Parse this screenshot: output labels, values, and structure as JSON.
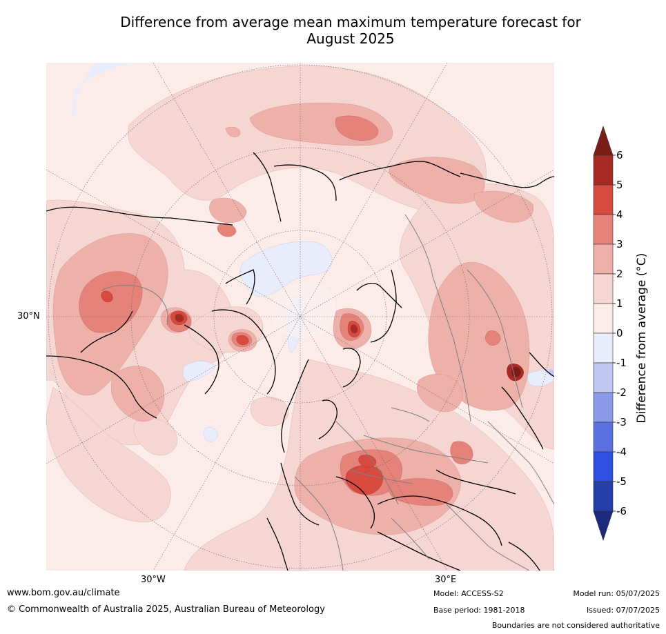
{
  "title_line1": "Difference from average mean maximum temperature forecast for",
  "title_line2": "August 2025",
  "map": {
    "lat_label": "30°N",
    "lon_labels": {
      "west": "30°W",
      "east": "30°E"
    }
  },
  "colorbar": {
    "label": "Difference from average (°C)",
    "ticks": [
      "6",
      "5",
      "4",
      "3",
      "2",
      "1",
      "0",
      "-1",
      "-2",
      "-3",
      "-4",
      "-5",
      "-6"
    ],
    "colors": [
      "#7d1d18",
      "#a82a24",
      "#d74a3f",
      "#e5837b",
      "#eeb1aa",
      "#f5d6d2",
      "#fbecea",
      "#e8ecfb",
      "#c0c8f1",
      "#8a99ea",
      "#5c71e1",
      "#2f4fdf",
      "#263ea7",
      "#1d2a7c"
    ]
  },
  "footer": {
    "url": "www.bom.gov.au/climate",
    "copyright": "© Commonwealth of Australia 2025, Australian Bureau of Meteorology",
    "model": "Model: ACCESS-S2",
    "base_period": "Base period: 1981-2018",
    "model_run": "Model run: 05/07/2025",
    "issued": "Issued: 07/07/2025",
    "disclaimer": "Boundaries are not considered authoritative"
  }
}
